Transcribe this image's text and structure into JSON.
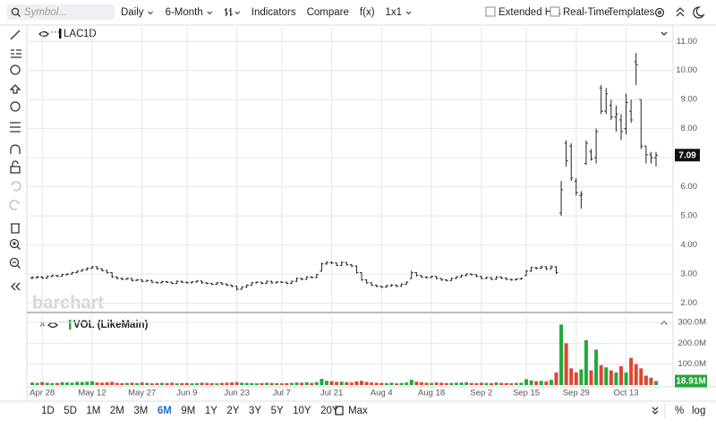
{
  "toolbar": {
    "symbol_placeholder": "Symbol...",
    "interval": "Daily",
    "range": "6-Month",
    "indicators": "Indicators",
    "compare": "Compare",
    "fx": "f(x)",
    "layout": "1x1",
    "extended_hours": "Extended Hrs",
    "real_time": "Real-Time",
    "templates": "Templates"
  },
  "watermark": "barchart",
  "range_buttons": [
    "1D",
    "5D",
    "1M",
    "2M",
    "3M",
    "6M",
    "9M",
    "1Y",
    "2Y",
    "3Y",
    "5Y",
    "10Y",
    "20Y",
    "Max"
  ],
  "active_range": 5,
  "scale_buttons": [
    "%",
    "log"
  ],
  "chart_data": {
    "type": "ohlc",
    "symbol": "LAC",
    "interval": "1D",
    "bar_color": "#222222",
    "up_color": "#22a93c",
    "down_color": "#e0452f",
    "grid": true,
    "categories": [
      null,
      null,
      "Apr 28",
      null,
      null,
      null,
      null,
      null,
      null,
      null,
      null,
      null,
      "May 12",
      null,
      null,
      null,
      null,
      null,
      null,
      null,
      null,
      null,
      "May 27",
      null,
      null,
      null,
      null,
      null,
      null,
      null,
      null,
      "Jun 9",
      null,
      null,
      null,
      null,
      null,
      null,
      null,
      null,
      null,
      "Jun 23",
      null,
      null,
      null,
      null,
      null,
      null,
      null,
      null,
      "Jul 7",
      null,
      null,
      null,
      null,
      null,
      null,
      null,
      null,
      null,
      "Jul 21",
      null,
      null,
      null,
      null,
      null,
      null,
      null,
      null,
      null,
      "Aug 4",
      null,
      null,
      null,
      null,
      null,
      null,
      null,
      null,
      null,
      "Aug 18",
      null,
      null,
      null,
      null,
      null,
      null,
      null,
      null,
      null,
      "Sep 2",
      null,
      null,
      null,
      null,
      null,
      null,
      null,
      null,
      "Sep 15",
      null,
      null,
      null,
      null,
      null,
      null,
      null,
      null,
      null,
      "Sep 29",
      null,
      null,
      null,
      null,
      null,
      null,
      null,
      null,
      null,
      "Oct 13",
      null,
      null,
      null,
      null,
      null,
      null
    ],
    "ohlc": [
      [
        2.86,
        2.93,
        2.83,
        2.88
      ],
      [
        2.88,
        2.94,
        2.85,
        2.9
      ],
      [
        2.9,
        2.93,
        2.83,
        2.86
      ],
      [
        2.86,
        2.95,
        2.84,
        2.92
      ],
      [
        2.92,
        2.98,
        2.9,
        2.95
      ],
      [
        2.95,
        2.97,
        2.9,
        2.93
      ],
      [
        2.93,
        3.01,
        2.92,
        2.98
      ],
      [
        2.98,
        3.03,
        2.96,
        3.0
      ],
      [
        3.0,
        3.08,
        2.98,
        3.05
      ],
      [
        3.05,
        3.13,
        3.03,
        3.1
      ],
      [
        3.1,
        3.18,
        3.08,
        3.15
      ],
      [
        3.15,
        3.23,
        3.12,
        3.2
      ],
      [
        3.2,
        3.28,
        3.17,
        3.25
      ],
      [
        3.25,
        3.27,
        3.15,
        3.18
      ],
      [
        3.18,
        3.2,
        3.09,
        3.12
      ],
      [
        3.12,
        3.14,
        3.02,
        3.05
      ],
      [
        3.05,
        3.07,
        2.87,
        2.9
      ],
      [
        2.9,
        2.93,
        2.82,
        2.85
      ],
      [
        2.85,
        2.88,
        2.79,
        2.82
      ],
      [
        2.82,
        2.88,
        2.8,
        2.85
      ],
      [
        2.85,
        2.87,
        2.75,
        2.78
      ],
      [
        2.78,
        2.83,
        2.76,
        2.8
      ],
      [
        2.8,
        2.82,
        2.72,
        2.75
      ],
      [
        2.75,
        2.81,
        2.73,
        2.78
      ],
      [
        2.78,
        2.8,
        2.69,
        2.72
      ],
      [
        2.72,
        2.74,
        2.67,
        2.7
      ],
      [
        2.7,
        2.77,
        2.68,
        2.74
      ],
      [
        2.74,
        2.76,
        2.69,
        2.72
      ],
      [
        2.72,
        2.74,
        2.65,
        2.68
      ],
      [
        2.68,
        2.78,
        2.66,
        2.75
      ],
      [
        2.75,
        2.77,
        2.69,
        2.72
      ],
      [
        2.72,
        2.74,
        2.67,
        2.7
      ],
      [
        2.7,
        2.76,
        2.68,
        2.73
      ],
      [
        2.73,
        2.79,
        2.71,
        2.76
      ],
      [
        2.76,
        2.78,
        2.67,
        2.7
      ],
      [
        2.7,
        2.72,
        2.65,
        2.68
      ],
      [
        2.68,
        2.7,
        2.62,
        2.65
      ],
      [
        2.65,
        2.73,
        2.63,
        2.7
      ],
      [
        2.7,
        2.72,
        2.63,
        2.66
      ],
      [
        2.66,
        2.68,
        2.59,
        2.62
      ],
      [
        2.62,
        2.64,
        2.55,
        2.58
      ],
      [
        2.58,
        2.6,
        2.44,
        2.48
      ],
      [
        2.48,
        2.58,
        2.46,
        2.55
      ],
      [
        2.55,
        2.65,
        2.53,
        2.62
      ],
      [
        2.62,
        2.73,
        2.6,
        2.7
      ],
      [
        2.7,
        2.75,
        2.68,
        2.72
      ],
      [
        2.72,
        2.74,
        2.65,
        2.68
      ],
      [
        2.68,
        2.78,
        2.66,
        2.75
      ],
      [
        2.75,
        2.77,
        2.67,
        2.7
      ],
      [
        2.7,
        2.76,
        2.68,
        2.73
      ],
      [
        2.73,
        2.75,
        2.69,
        2.72
      ],
      [
        2.72,
        2.74,
        2.65,
        2.68
      ],
      [
        2.68,
        2.78,
        2.66,
        2.75
      ],
      [
        2.75,
        2.88,
        2.73,
        2.85
      ],
      [
        2.85,
        2.87,
        2.79,
        2.82
      ],
      [
        2.82,
        2.93,
        2.8,
        2.9
      ],
      [
        2.9,
        2.92,
        2.85,
        2.88
      ],
      [
        2.88,
        3.01,
        2.86,
        2.98
      ],
      [
        3.1,
        3.4,
        3.08,
        3.35
      ],
      [
        3.35,
        3.45,
        3.32,
        3.4
      ],
      [
        3.4,
        3.43,
        3.34,
        3.38
      ],
      [
        3.38,
        3.4,
        3.27,
        3.3
      ],
      [
        3.3,
        3.44,
        3.28,
        3.4
      ],
      [
        3.4,
        3.42,
        3.29,
        3.32
      ],
      [
        3.32,
        3.34,
        3.24,
        3.28
      ],
      [
        3.28,
        3.3,
        3.02,
        3.05
      ],
      [
        3.05,
        3.07,
        2.77,
        2.8
      ],
      [
        2.8,
        2.82,
        2.67,
        2.7
      ],
      [
        2.7,
        2.72,
        2.59,
        2.62
      ],
      [
        2.62,
        2.64,
        2.55,
        2.58
      ],
      [
        2.58,
        2.6,
        2.52,
        2.55
      ],
      [
        2.55,
        2.63,
        2.53,
        2.6
      ],
      [
        2.6,
        2.65,
        2.57,
        2.62
      ],
      [
        2.62,
        2.64,
        2.55,
        2.58
      ],
      [
        2.58,
        2.68,
        2.56,
        2.65
      ],
      [
        2.65,
        2.75,
        2.63,
        2.72
      ],
      [
        2.85,
        3.12,
        2.83,
        3.05
      ],
      [
        3.05,
        3.07,
        2.92,
        2.95
      ],
      [
        2.95,
        2.97,
        2.87,
        2.9
      ],
      [
        2.9,
        2.92,
        2.85,
        2.88
      ],
      [
        2.88,
        2.95,
        2.86,
        2.92
      ],
      [
        2.92,
        2.94,
        2.82,
        2.85
      ],
      [
        2.85,
        2.87,
        2.77,
        2.8
      ],
      [
        2.8,
        2.82,
        2.75,
        2.78
      ],
      [
        2.78,
        2.88,
        2.76,
        2.85
      ],
      [
        2.85,
        2.93,
        2.83,
        2.9
      ],
      [
        2.9,
        2.98,
        2.88,
        2.95
      ],
      [
        2.95,
        3.03,
        2.93,
        3.0
      ],
      [
        3.0,
        3.02,
        2.95,
        2.98
      ],
      [
        2.98,
        3.0,
        2.89,
        2.92
      ],
      [
        2.92,
        2.94,
        2.82,
        2.85
      ],
      [
        2.85,
        2.91,
        2.83,
        2.88
      ],
      [
        2.88,
        2.9,
        2.79,
        2.82
      ],
      [
        2.82,
        2.93,
        2.8,
        2.9
      ],
      [
        2.9,
        2.92,
        2.83,
        2.86
      ],
      [
        2.86,
        2.88,
        2.79,
        2.82
      ],
      [
        2.82,
        2.84,
        2.77,
        2.8
      ],
      [
        2.8,
        2.86,
        2.78,
        2.83
      ],
      [
        2.83,
        2.88,
        2.81,
        2.85
      ],
      [
        2.95,
        3.15,
        2.93,
        3.1
      ],
      [
        3.1,
        3.26,
        3.08,
        3.22
      ],
      [
        3.22,
        3.25,
        3.16,
        3.2
      ],
      [
        3.2,
        3.29,
        3.18,
        3.25
      ],
      [
        3.25,
        3.28,
        3.14,
        3.18
      ],
      [
        3.18,
        3.3,
        3.16,
        3.25
      ],
      [
        3.25,
        3.27,
        3.0,
        3.05
      ],
      [
        5.1,
        6.2,
        5.0,
        5.9
      ],
      [
        7.5,
        7.6,
        6.7,
        6.9
      ],
      [
        7.4,
        7.5,
        6.2,
        6.3
      ],
      [
        6.2,
        6.3,
        5.7,
        5.8
      ],
      [
        5.7,
        5.85,
        5.25,
        5.75
      ],
      [
        6.8,
        7.6,
        6.75,
        7.5
      ],
      [
        7.2,
        7.3,
        6.9,
        6.95
      ],
      [
        7.0,
        8.0,
        6.8,
        7.9
      ],
      [
        9.4,
        9.5,
        8.5,
        8.6
      ],
      [
        8.6,
        9.4,
        8.5,
        9.2
      ],
      [
        8.8,
        9.0,
        8.3,
        8.4
      ],
      [
        8.4,
        8.8,
        7.9,
        8.5
      ],
      [
        8.3,
        8.5,
        7.6,
        7.9
      ],
      [
        8.0,
        9.2,
        7.8,
        8.9
      ],
      [
        8.6,
        9.0,
        8.2,
        8.3
      ],
      [
        10.3,
        10.6,
        9.5,
        10.2
      ],
      [
        9.0,
        9.0,
        7.3,
        7.4
      ],
      [
        7.4,
        7.4,
        6.8,
        7.1
      ],
      [
        7.1,
        7.2,
        6.8,
        7.0
      ],
      [
        7.0,
        7.2,
        6.7,
        7.09
      ]
    ],
    "ylim": [
      1.71,
      11.5
    ],
    "yticks": [
      {
        "value": 2,
        "label": "2.00"
      },
      {
        "value": 3,
        "label": "3.00"
      },
      {
        "value": 4,
        "label": "4.00"
      },
      {
        "value": 5,
        "label": "5.00"
      },
      {
        "value": 6,
        "label": "6.00"
      },
      {
        "value": 7,
        "label": "7.00"
      },
      {
        "value": 8,
        "label": "8.00"
      },
      {
        "value": 9,
        "label": "9.00"
      },
      {
        "value": 10,
        "label": "10.00"
      },
      {
        "value": 11,
        "label": "11.00"
      }
    ],
    "volume": {
      "title": "VOL (LikeMain)",
      "values": [
        12,
        10,
        14,
        11,
        9,
        10,
        13,
        12,
        11,
        15,
        14,
        16,
        18,
        12,
        11,
        13,
        15,
        10,
        9,
        10,
        11,
        9,
        12,
        10,
        8,
        9,
        10,
        9,
        11,
        8,
        9,
        10,
        8,
        9,
        11,
        10,
        9,
        8,
        10,
        11,
        12,
        14,
        11,
        10,
        9,
        8,
        9,
        11,
        10,
        9,
        8,
        9,
        10,
        12,
        11,
        13,
        10,
        14,
        30,
        20,
        18,
        15,
        16,
        14,
        12,
        17,
        20,
        15,
        12,
        11,
        10,
        9,
        11,
        8,
        10,
        12,
        25,
        16,
        13,
        11,
        10,
        12,
        11,
        9,
        10,
        11,
        12,
        13,
        10,
        9,
        11,
        10,
        9,
        12,
        10,
        9,
        8,
        10,
        11,
        28,
        22,
        18,
        20,
        17,
        25,
        60,
        290,
        200,
        80,
        60,
        75,
        215,
        70,
        170,
        95,
        85,
        70,
        60,
        90,
        60,
        130,
        100,
        80,
        45,
        35,
        18.91
      ],
      "value_labels": {
        "125": "18.91M"
      },
      "ylim": [
        0,
        335
      ],
      "yticks": [
        {
          "value": 100,
          "label": "100.0M"
        },
        {
          "value": 200,
          "label": "200.0M"
        },
        {
          "value": 300,
          "label": "300.0M"
        }
      ]
    }
  }
}
